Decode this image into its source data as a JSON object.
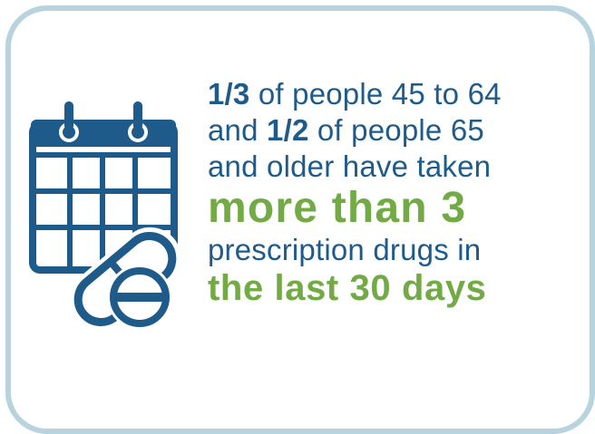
{
  "colors": {
    "border": "#b7d3de",
    "blue": "#1e5b8a",
    "green": "#72ab45"
  },
  "icons": [
    "calendar-icon",
    "pills-icon"
  ],
  "text": {
    "line1_bold": "1/3",
    "line1_rest": " of people 45 to 64",
    "line2_start": "and ",
    "line2_bold": "1/2",
    "line2_rest": " of people 65",
    "line3": "and older have taken",
    "highlight1": "more than 3",
    "line5": "prescription drugs in",
    "highlight2": "the last 30 days"
  }
}
